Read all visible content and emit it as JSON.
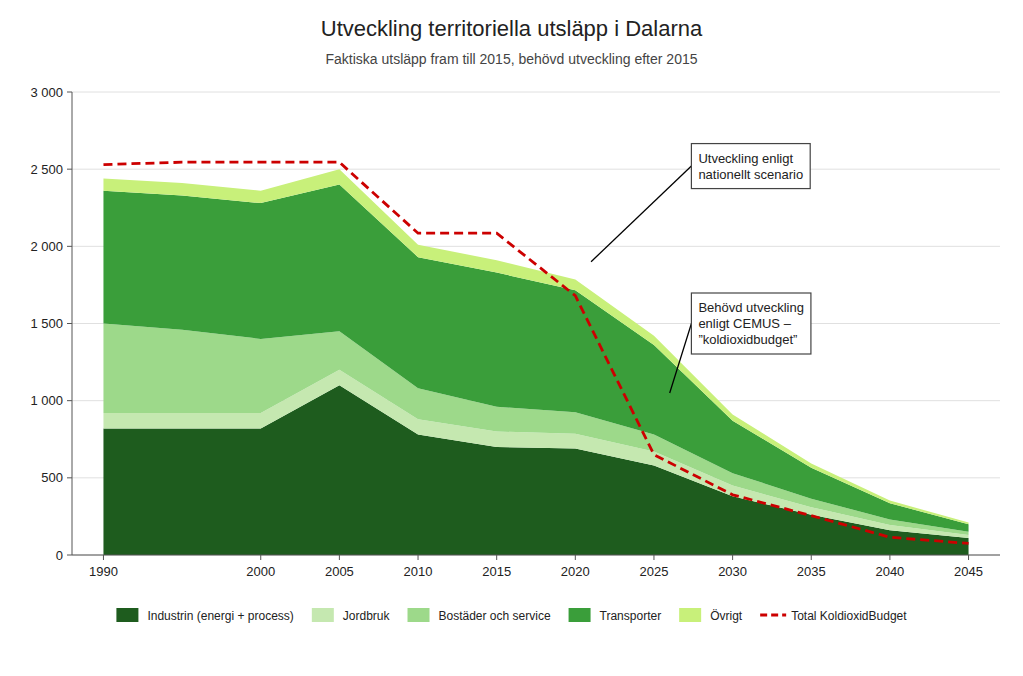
{
  "chart_data": {
    "type": "area",
    "stacked": true,
    "title": "Utveckling territoriella utsläpp i Dalarna",
    "subtitle": "Faktiska utsläpp fram till 2015, behövd utveckling efter 2015",
    "x": [
      1990,
      1995,
      2000,
      2005,
      2010,
      2015,
      2020,
      2025,
      2030,
      2035,
      2040,
      2045
    ],
    "series": [
      {
        "name": "Industrin (energi + process)",
        "color": "#1e5c1e",
        "values": [
          820,
          820,
          820,
          1100,
          780,
          700,
          690,
          580,
          380,
          260,
          160,
          110
        ]
      },
      {
        "name": "Jordbruk",
        "color": "#c5e8b0",
        "values": [
          100,
          100,
          100,
          100,
          100,
          100,
          95,
          90,
          70,
          50,
          35,
          20
        ]
      },
      {
        "name": "Bostäder och service",
        "color": "#9dd98a",
        "values": [
          580,
          540,
          480,
          250,
          200,
          160,
          140,
          110,
          80,
          55,
          35,
          20
        ]
      },
      {
        "name": "Transporter",
        "color": "#3a9e3a",
        "values": [
          860,
          870,
          880,
          950,
          850,
          870,
          790,
          580,
          340,
          200,
          105,
          50
        ]
      },
      {
        "name": "Övrigt",
        "color": "#c8f07a",
        "values": [
          80,
          80,
          80,
          100,
          80,
          80,
          70,
          60,
          40,
          28,
          18,
          10
        ]
      },
      {
        "name": "Total KoldioxidBudget",
        "color": "#cc0000",
        "type": "line",
        "line_style": "dashed",
        "values": [
          2530,
          2545,
          2545,
          2545,
          2085,
          2085,
          1680,
          650,
          390,
          255,
          115,
          75
        ]
      }
    ],
    "xlim": [
      1988,
      2047
    ],
    "xticks": [
      1990,
      2000,
      2005,
      2010,
      2015,
      2020,
      2025,
      2030,
      2035,
      2040,
      2045
    ],
    "ylim": [
      0,
      3000
    ],
    "yticks": [
      0,
      500,
      {
        "value": 1000,
        "label": "1 000"
      },
      {
        "value": 1500,
        "label": "1 500"
      },
      {
        "value": 2000,
        "label": "2 000"
      },
      {
        "value": 2500,
        "label": "2 500"
      },
      {
        "value": 3000,
        "label": "3 000"
      }
    ],
    "grid": true,
    "legend": "bottom",
    "annotations": [
      {
        "text": "Utveckling enligt\nnationellt scenario",
        "x": 2021,
        "y": 1900
      },
      {
        "text": "Behövd utveckling\nenligt CEMUS –\n”koldioxidbudget”",
        "x": 2026,
        "y": 1050
      }
    ]
  }
}
